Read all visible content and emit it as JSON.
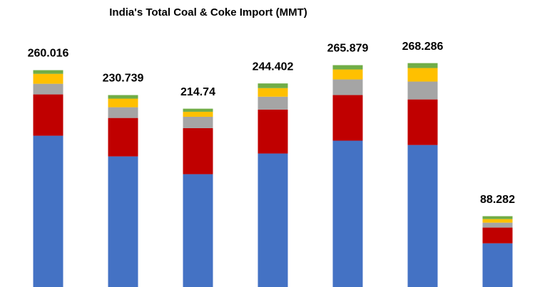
{
  "chart_data": {
    "type": "stacked_bar",
    "title": "India's Total Coal & Coke Import (MMT)",
    "categories": [
      null,
      null,
      null,
      null,
      null,
      null,
      null
    ],
    "totals": [
      260.016,
      230.739,
      214.74,
      244.402,
      265.879,
      268.286,
      88.282
    ],
    "series": [
      {
        "color": "#4472c4",
        "values": [
          182.9,
          158.6,
          137.7,
          162.0,
          177.1,
          172.0,
          56.4
        ]
      },
      {
        "color": "#c00000",
        "values": [
          48.6,
          45.2,
          54.1,
          51.7,
          53.6,
          53.6,
          18.5
        ]
      },
      {
        "color": "#a5a5a5",
        "values": [
          12.5,
          12.6,
          13.4,
          15.1,
          18.4,
          21.0,
          5.8
        ]
      },
      {
        "color": "#ffc000",
        "values": [
          11.7,
          10.1,
          5.9,
          10.1,
          11.7,
          15.9,
          4.2
        ]
      },
      {
        "color": "#70ad47",
        "values": [
          4.3,
          4.2,
          3.6,
          5.5,
          5.1,
          5.8,
          3.4
        ]
      }
    ],
    "ylim": [
      0,
      340
    ]
  }
}
